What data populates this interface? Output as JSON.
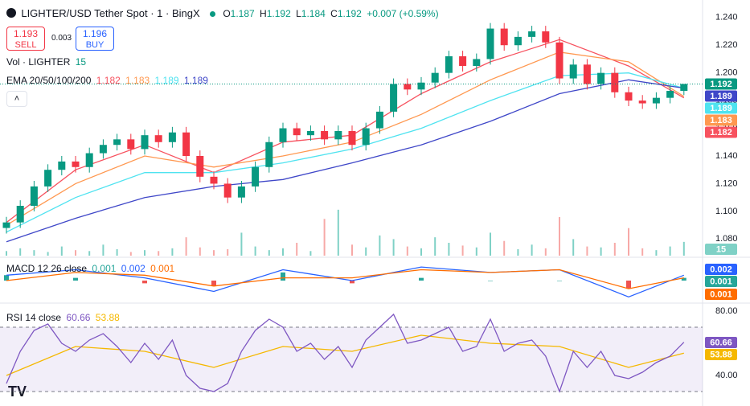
{
  "header": {
    "symbol": "LIGHTER/USD Tether Spot · 1 · BingX",
    "ohlc_labels": [
      "O",
      "H",
      "L",
      "C"
    ],
    "change": "+0.007 (+0.59%)",
    "sell_price": "1.193",
    "sell": "SELL",
    "spread": "0.003",
    "buy_price": "1.196",
    "buy": "BUY",
    "vol_title": "Vol · LIGHTER",
    "ema_title": "EMA 20/50/100/200",
    "macd_title": "MACD 12 26 close",
    "rsi_title": "RSI 14 close"
  },
  "chart_data": [
    {
      "type": "candlestick",
      "up_color": "#089981",
      "down_color": "#f23645",
      "ylim": [
        1.068,
        1.248
      ],
      "yticks": [
        {
          "value": 1.24,
          "label": "1.240"
        },
        {
          "value": 1.22,
          "label": "1.220"
        },
        {
          "value": 1.2,
          "label": "1.200"
        },
        {
          "value": 1.18,
          "label": "1.180"
        },
        {
          "value": 1.16,
          "label": "1.160"
        },
        {
          "value": 1.14,
          "label": "1.140"
        },
        {
          "value": 1.12,
          "label": "1.120"
        },
        {
          "value": 1.1,
          "label": "1.100"
        },
        {
          "value": 1.08,
          "label": "1.080"
        }
      ],
      "open": [
        1.088,
        1.092,
        1.104,
        1.118,
        1.13,
        1.136,
        1.132,
        1.142,
        1.148,
        1.152,
        1.145,
        1.155,
        1.15,
        1.157,
        1.14,
        1.125,
        1.12,
        1.11,
        1.118,
        1.132,
        1.15,
        1.16,
        1.155,
        1.158,
        1.152,
        1.158,
        1.148,
        1.16,
        1.172,
        1.192,
        1.188,
        1.193,
        1.2,
        1.212,
        1.205,
        1.21,
        1.232,
        1.22,
        1.226,
        1.23,
        1.222,
        1.196,
        1.206,
        1.192,
        1.2,
        1.186,
        1.18,
        1.178,
        1.182,
        1.187
      ],
      "high": [
        1.096,
        1.108,
        1.122,
        1.134,
        1.14,
        1.14,
        1.146,
        1.152,
        1.156,
        1.156,
        1.159,
        1.159,
        1.161,
        1.161,
        1.144,
        1.129,
        1.124,
        1.122,
        1.136,
        1.154,
        1.164,
        1.164,
        1.162,
        1.162,
        1.162,
        1.162,
        1.164,
        1.176,
        1.196,
        1.196,
        1.197,
        1.204,
        1.216,
        1.216,
        1.214,
        1.236,
        1.236,
        1.23,
        1.234,
        1.234,
        1.226,
        1.21,
        1.21,
        1.204,
        1.204,
        1.19,
        1.184,
        1.186,
        1.191,
        1.192
      ],
      "low": [
        1.084,
        1.088,
        1.1,
        1.114,
        1.126,
        1.128,
        1.128,
        1.138,
        1.144,
        1.141,
        1.141,
        1.146,
        1.146,
        1.136,
        1.121,
        1.116,
        1.106,
        1.106,
        1.114,
        1.128,
        1.146,
        1.151,
        1.151,
        1.148,
        1.148,
        1.144,
        1.144,
        1.156,
        1.168,
        1.184,
        1.184,
        1.189,
        1.196,
        1.201,
        1.201,
        1.206,
        1.216,
        1.216,
        1.222,
        1.218,
        1.192,
        1.192,
        1.188,
        1.188,
        1.182,
        1.176,
        1.174,
        1.174,
        1.178,
        1.184
      ],
      "close": [
        1.092,
        1.104,
        1.118,
        1.13,
        1.136,
        1.132,
        1.142,
        1.148,
        1.152,
        1.145,
        1.155,
        1.15,
        1.157,
        1.14,
        1.125,
        1.12,
        1.11,
        1.118,
        1.132,
        1.15,
        1.16,
        1.155,
        1.158,
        1.152,
        1.158,
        1.148,
        1.16,
        1.172,
        1.192,
        1.188,
        1.193,
        1.2,
        1.212,
        1.205,
        1.21,
        1.232,
        1.22,
        1.226,
        1.23,
        1.222,
        1.196,
        1.206,
        1.192,
        1.2,
        1.186,
        1.18,
        1.178,
        1.182,
        1.187,
        1.192
      ],
      "series": [
        {
          "color": "#f7525f",
          "x": [
            0,
            5,
            10,
            15,
            20,
            25,
            30,
            35,
            40,
            45,
            49
          ],
          "values": [
            1.092,
            1.13,
            1.148,
            1.128,
            1.15,
            1.155,
            1.185,
            1.208,
            1.224,
            1.205,
            1.182
          ]
        },
        {
          "color": "#ff9850",
          "x": [
            0,
            5,
            10,
            15,
            20,
            25,
            30,
            35,
            40,
            45,
            49
          ],
          "values": [
            1.09,
            1.12,
            1.14,
            1.132,
            1.14,
            1.15,
            1.17,
            1.195,
            1.215,
            1.208,
            1.183
          ]
        },
        {
          "color": "#4fe3f0",
          "x": [
            0,
            5,
            10,
            15,
            20,
            25,
            30,
            35,
            40,
            45,
            49
          ],
          "values": [
            1.085,
            1.11,
            1.128,
            1.128,
            1.135,
            1.145,
            1.16,
            1.18,
            1.198,
            1.2,
            1.189
          ]
        },
        {
          "color": "#3f47c8",
          "x": [
            0,
            5,
            10,
            15,
            20,
            25,
            30,
            35,
            40,
            45,
            49
          ],
          "values": [
            1.078,
            1.095,
            1.11,
            1.118,
            1.123,
            1.135,
            1.148,
            1.165,
            1.185,
            1.195,
            1.189
          ]
        }
      ],
      "volume": {
        "ylim": [
          0,
          70
        ],
        "color": "#7fd1c6",
        "values": [
          5,
          8,
          6,
          4,
          10,
          6,
          5,
          12,
          7,
          4,
          6,
          5,
          8,
          20,
          9,
          6,
          7,
          25,
          10,
          6,
          8,
          14,
          5,
          40,
          50,
          12,
          9,
          22,
          18,
          10,
          8,
          20,
          14,
          11,
          9,
          25,
          16,
          7,
          12,
          8,
          42,
          18,
          10,
          9,
          14,
          30,
          8,
          6,
          10,
          15
        ]
      }
    },
    {
      "type": "macd",
      "ylim": [
        -0.008,
        0.008
      ],
      "x": [
        0,
        5,
        10,
        15,
        20,
        25,
        30,
        35,
        40,
        45,
        49
      ],
      "histogram": {
        "color": "#26a69a",
        "down_color": "#ef5350",
        "values": [
          0.002,
          0.001,
          -0.001,
          -0.002,
          0.003,
          -0.001,
          0.001,
          0.0,
          0.0,
          -0.003,
          0.001
        ]
      },
      "macd": {
        "color": "#2962ff",
        "values": [
          0.002,
          0.004,
          0.001,
          -0.004,
          0.004,
          0.0,
          0.005,
          0.003,
          0.004,
          -0.006,
          0.002
        ]
      },
      "signal": {
        "color": "#ff6d00",
        "values": [
          0.0,
          0.003,
          0.002,
          -0.002,
          0.001,
          0.001,
          0.004,
          0.003,
          0.004,
          -0.003,
          0.001
        ]
      }
    },
    {
      "type": "line",
      "ylim": [
        23.5,
        84.5
      ],
      "color": "#7e57c2",
      "bands": [
        30,
        70
      ],
      "yticks": [
        {
          "value": 80,
          "label": "80.00"
        },
        {
          "value": 40,
          "label": "40.00"
        }
      ],
      "values": [
        35,
        55,
        68,
        72,
        60,
        55,
        62,
        66,
        58,
        48,
        60,
        50,
        62,
        40,
        32,
        30,
        35,
        55,
        68,
        75,
        70,
        55,
        60,
        50,
        58,
        45,
        62,
        70,
        78,
        60,
        62,
        66,
        70,
        55,
        58,
        75,
        55,
        60,
        62,
        52,
        30,
        55,
        45,
        55,
        40,
        38,
        42,
        48,
        52,
        60.66
      ],
      "ma": {
        "color": "#f5b800",
        "x": [
          0,
          5,
          10,
          15,
          20,
          25,
          30,
          35,
          40,
          45,
          49
        ],
        "values": [
          40,
          58,
          55,
          45,
          58,
          55,
          65,
          60,
          58,
          45,
          53.88
        ]
      }
    }
  ]
}
